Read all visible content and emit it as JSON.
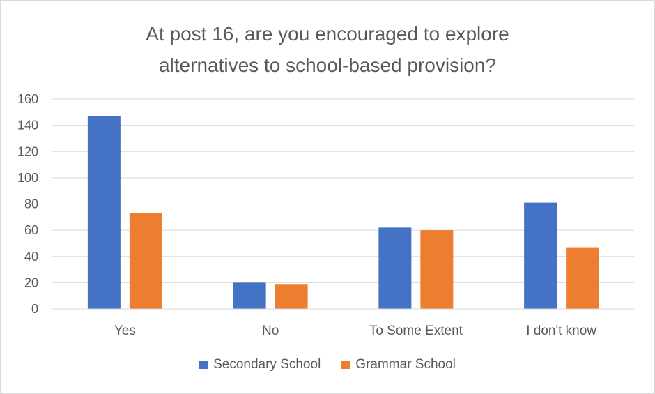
{
  "chart_data": {
    "type": "bar",
    "title_lines": [
      "At post 16, are you encouraged to explore",
      "alternatives to school-based provision?"
    ],
    "categories": [
      "Yes",
      "No",
      "To Some Extent",
      "I don't know"
    ],
    "series": [
      {
        "name": "Secondary School",
        "values": [
          147,
          20,
          62,
          81
        ],
        "color": "#4472c4"
      },
      {
        "name": "Grammar School",
        "values": [
          73,
          19,
          60,
          47
        ],
        "color": "#ed7d31"
      }
    ],
    "ylim": [
      0,
      160
    ],
    "yticks": [
      0,
      20,
      40,
      60,
      80,
      100,
      120,
      140,
      160
    ],
    "grid": true,
    "legend_position": "bottom",
    "xlabel": "",
    "ylabel": ""
  }
}
